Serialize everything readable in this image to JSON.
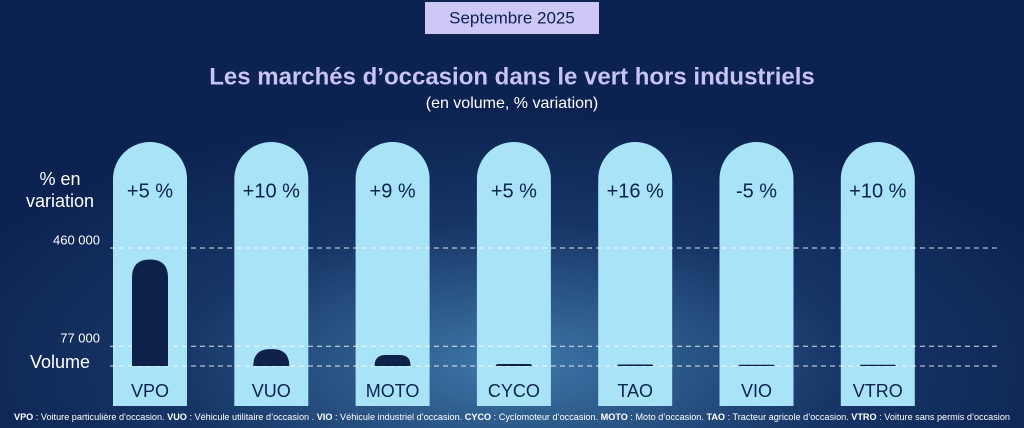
{
  "badge": "Septembre 2025",
  "chart_data": {
    "type": "capsule-bar",
    "title": "Les marchés d’occasion dans le vert hors industriels",
    "subtitle": "(en volume, % variation)",
    "categories": [
      "VPO",
      "VUO",
      "MOTO",
      "CYCO",
      "TAO",
      "VIO",
      "VTRO"
    ],
    "series": [
      {
        "name": "Volume",
        "color": "#0e2148",
        "values": [
          415000,
          66000,
          43000,
          8000,
          6000,
          5000,
          5000
        ]
      }
    ],
    "variation": {
      "name": "% en variation",
      "values": [
        5,
        10,
        9,
        5,
        16,
        -5,
        10
      ],
      "value_labels": [
        "+5 %",
        "+10 %",
        "+9 %",
        "+5 %",
        "+16 %",
        "-5 %",
        "+10 %"
      ]
    },
    "ylim": [
      0,
      460000
    ],
    "yticks": [
      {
        "value": 77000,
        "label": "77 000"
      },
      {
        "value": 460000,
        "label": "460 000"
      }
    ],
    "grid": true,
    "capsule_color": "#a9e3f8"
  },
  "footnote": [
    {
      "abbr": "VPO",
      "text": " : Voiture particulière d’occasion. "
    },
    {
      "abbr": "VUO",
      "text": " : Véhicule utilitaire d’occasion . "
    },
    {
      "abbr": "VIO",
      "text": " : Véhicule industriel d’occasion. "
    },
    {
      "abbr": "CYCO",
      "text": " : Cyclomoteur d’occasion. "
    },
    {
      "abbr": "MOTO",
      "text": " : Moto d’occasion. "
    },
    {
      "abbr": "TAO",
      "text": " : Tracteur agricole d’occasion. "
    },
    {
      "abbr": "VTRO",
      "text": " : Voiture sans permis d’occasion"
    }
  ]
}
